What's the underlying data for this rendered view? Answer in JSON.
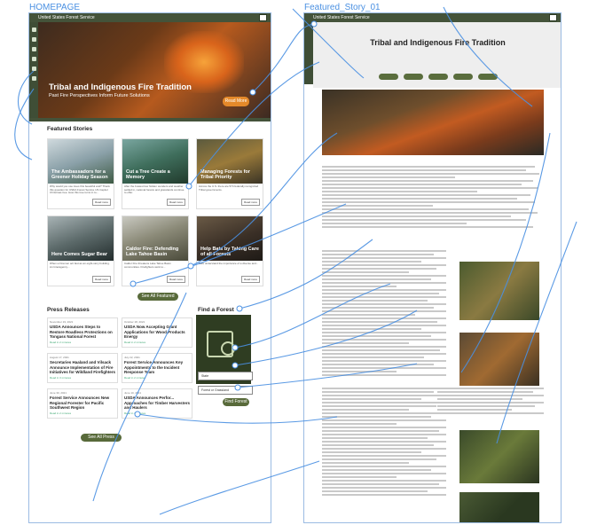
{
  "canvas": {
    "home_label": "HOMEPAGE",
    "story_label": "Featured_Story_01"
  },
  "brand": {
    "agency": "United States Forest Service",
    "agency_story": "United States Forest Service"
  },
  "home": {
    "hero": {
      "title": "Tribal and Indigenous Fire Tradition",
      "subtitle": "Past Fire Perspectives Inform Future Solutions",
      "subtitle2": "Future Solutions",
      "cta": "Read More"
    },
    "featured_title": "Featured Stories",
    "stories": [
      {
        "title": "The Ambassadors for a Greener Holiday Season",
        "text": "Why would you use trees this beautiful and? Thank this question for USDA Forest Service US Capitol Christmas tree. How this tree turns in to..."
      },
      {
        "title": "Cut a Tree Create a Memory",
        "text": "After the busiest few hidden wonders and weather settled in, national forests and grasslands continue to offer."
      },
      {
        "title": "Managing Forests for Tribal Priority",
        "text": "Across the U.S. there are 574 federally recognized Tribal governments."
      },
      {
        "title": "Here Comes Sugar Bear",
        "text": "When a Firemen act fast as an eight-story building. An Interagency..."
      },
      {
        "title": "Caldor Fire: Defending Lake Tahoe Basin",
        "text": "Caldor Fire threatens Lake Tahoe Basin communities. Firefighters work to..."
      },
      {
        "title": "Help Bats by Taking Care of all Forests",
        "text": "Bats understand the importance of a diverse and..."
      }
    ],
    "read_more": "Read more",
    "see_all_stories": "See All Featured Stories",
    "press_title": "Press Releases",
    "press": [
      {
        "date": "November 19, 2021",
        "title": "USDA Announces Steps to Restore Roadless Protections on Tongass National Forest",
        "read": "Read in 2 minutes"
      },
      {
        "date": "October 18, 2021",
        "title": "USDA Now Accepting Grant Applications for Wood Products Energy",
        "read": "Read in 2 minutes"
      },
      {
        "date": "August 17, 2021",
        "title": "Secretaries Haaland and Vilsack Announce Implementation of Fire Initiatives for Wildland Firefighters",
        "read": "Read in 3 minutes"
      },
      {
        "date": "July 22, 2021",
        "title": "Forest Service Announces Key Appointments to the Incident Response Team",
        "read": "Read in 2 minutes"
      },
      {
        "date": "June 30, 2021",
        "title": "Forest Service Announces New Regional Forester for Pacific Southwest Region",
        "read": "Read in 2 minutes"
      },
      {
        "date": "June 10, 2021",
        "title": "USDA Announces Perfor... Approaches for Timber Harvesters and Haulers",
        "read": "Read in 2 minutes"
      }
    ],
    "see_all_press": "See All Press Releases",
    "find_title": "Find a Forest",
    "state_placeholder": "State",
    "forest_placeholder": "Forest or Grassland",
    "find_button": "Find Forest"
  },
  "story": {
    "title": "Tribal and Indigenous Fire Tradition"
  },
  "colors": {
    "olive": "#44533a",
    "accent_orange": "#e4892a",
    "wire_blue": "#4a90e2"
  }
}
